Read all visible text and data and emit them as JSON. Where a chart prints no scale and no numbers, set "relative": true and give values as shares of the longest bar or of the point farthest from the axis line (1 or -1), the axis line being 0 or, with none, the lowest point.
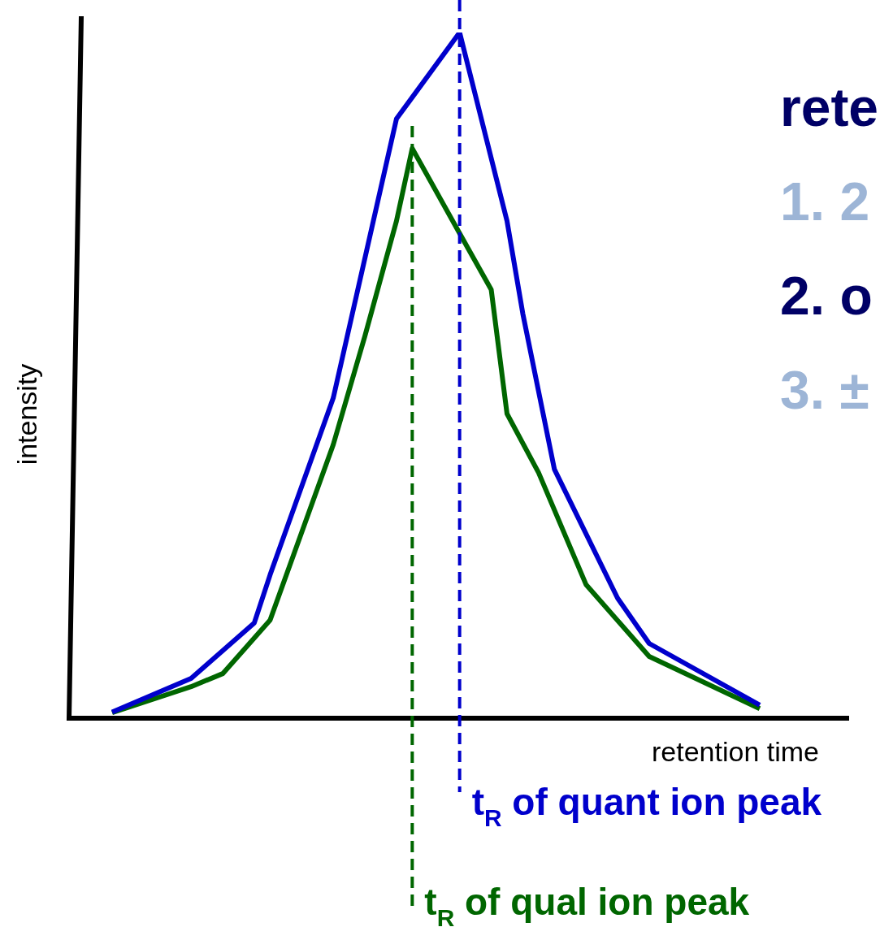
{
  "chart_data": {
    "type": "line",
    "relative": true,
    "xlabel": "retention time",
    "ylabel": "intensity",
    "legend": false,
    "marker": "none",
    "categories": [
      null,
      null,
      null,
      null,
      null,
      null,
      null,
      null,
      null,
      null,
      null,
      null,
      null,
      null,
      null,
      null,
      null,
      null,
      null,
      null,
      null,
      null,
      null,
      null,
      null,
      null,
      null,
      null,
      null,
      null,
      null,
      null,
      null,
      null,
      null,
      null,
      null,
      null,
      null,
      null,
      null,
      null
    ],
    "series": [
      {
        "color": "#0000cc",
        "values": [
          0.009,
          null,
          null,
          null,
          null,
          0.058,
          null,
          null,
          null,
          0.139,
          0.209,
          null,
          null,
          null,
          0.467,
          null,
          null,
          null,
          0.874,
          null,
          null,
          null,
          1,
          null,
          null,
          0.725,
          0.59,
          null,
          0.363,
          null,
          null,
          null,
          0.175,
          null,
          0.109,
          null,
          null,
          null,
          null,
          null,
          null,
          0.019
        ]
      },
      {
        "color": "#006600",
        "values": [
          0.008,
          null,
          null,
          null,
          null,
          0.046,
          null,
          0.065,
          null,
          null,
          0.143,
          null,
          null,
          null,
          0.399,
          null,
          0.557,
          null,
          0.725,
          0.831,
          null,
          null,
          0.707,
          null,
          0.625,
          0.444,
          null,
          0.358,
          null,
          null,
          0.195,
          null,
          null,
          null,
          0.09,
          null,
          null,
          null,
          null,
          null,
          null,
          0.014
        ]
      }
    ],
    "ref_lines": [
      {
        "axis": "x",
        "label": "t$_{R}$ of quant ion peak",
        "color": "#0000cc",
        "line_style": "dashed"
      },
      {
        "axis": "x",
        "label": "t$_{R}$ of qual ion peak",
        "color": "#006600",
        "line_style": "dashed"
      }
    ],
    "annotations": [
      "rete",
      "1. 2",
      "2. o",
      "3. ±"
    ]
  }
}
